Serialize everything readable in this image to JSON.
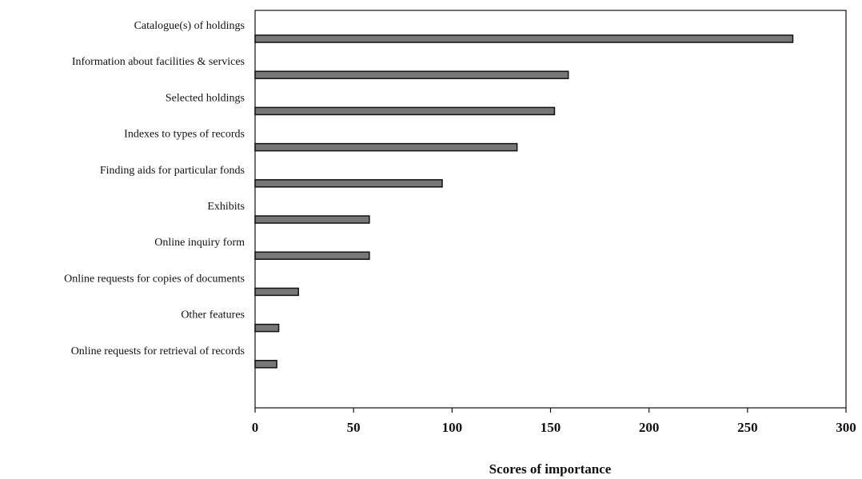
{
  "chart_data": {
    "type": "bar",
    "orientation": "horizontal",
    "categories": [
      "Catalogue(s) of holdings",
      "Information about facilities & services",
      "Selected holdings",
      "Indexes to types of records",
      "Finding aids for particular fonds",
      "Exhibits",
      "Online inquiry form",
      "Online requests for copies of documents",
      "Other features",
      "Online requests for retrieval of records"
    ],
    "values": [
      273,
      159,
      152,
      133,
      95,
      58,
      58,
      22,
      12,
      11
    ],
    "xlabel": "Scores of importance",
    "ylabel": "",
    "title": "",
    "xlim": [
      0,
      300
    ],
    "xticks": [
      0,
      50,
      100,
      150,
      200,
      250,
      300
    ],
    "grid": false,
    "legend": "none",
    "colors": {
      "bar_fill": "#777777",
      "bar_stroke": "#111111",
      "axis": "#111111"
    }
  }
}
